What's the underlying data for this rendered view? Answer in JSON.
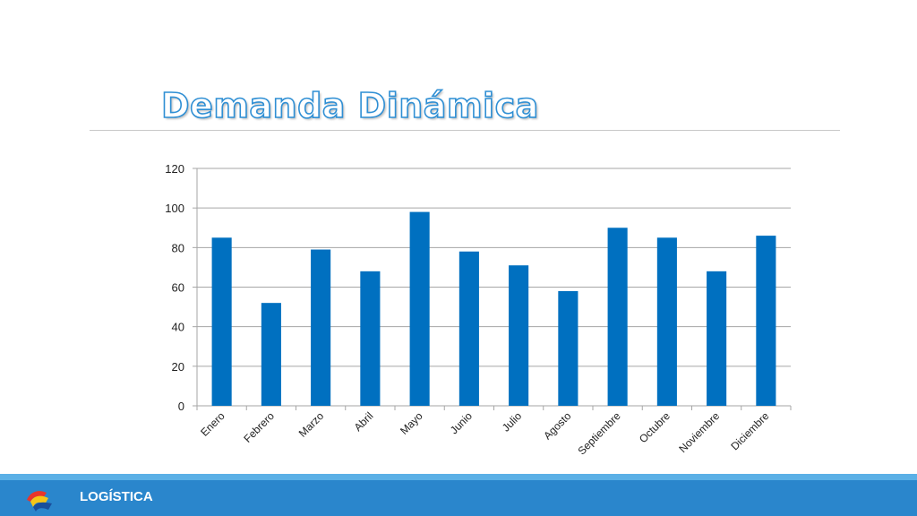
{
  "slide": {
    "title": "Demanda Dinámica",
    "footer_label": "LOGÍSTICA",
    "logo_icon": "ribbon-logo-icon"
  },
  "colors": {
    "bar": "#0070c0",
    "title_outline": "#2f8fd4",
    "footer": "#2a86cc",
    "footer_accent": "#5bb0e6",
    "gridline": "#a6a6a6"
  },
  "chart_data": {
    "type": "bar",
    "categories": [
      "Enero",
      "Febrero",
      "Marzo",
      "Abril",
      "Mayo",
      "Junio",
      "Julio",
      "Agosto",
      "Septiembre",
      "Octubre",
      "Noviembre",
      "Diciembre"
    ],
    "values": [
      85,
      52,
      79,
      68,
      98,
      78,
      71,
      58,
      90,
      85,
      68,
      86
    ],
    "ylim": [
      0,
      120
    ],
    "yticks": [
      0,
      20,
      40,
      60,
      80,
      100,
      120
    ],
    "grid": true,
    "legend": "none",
    "title": "",
    "xlabel": "",
    "ylabel": ""
  }
}
